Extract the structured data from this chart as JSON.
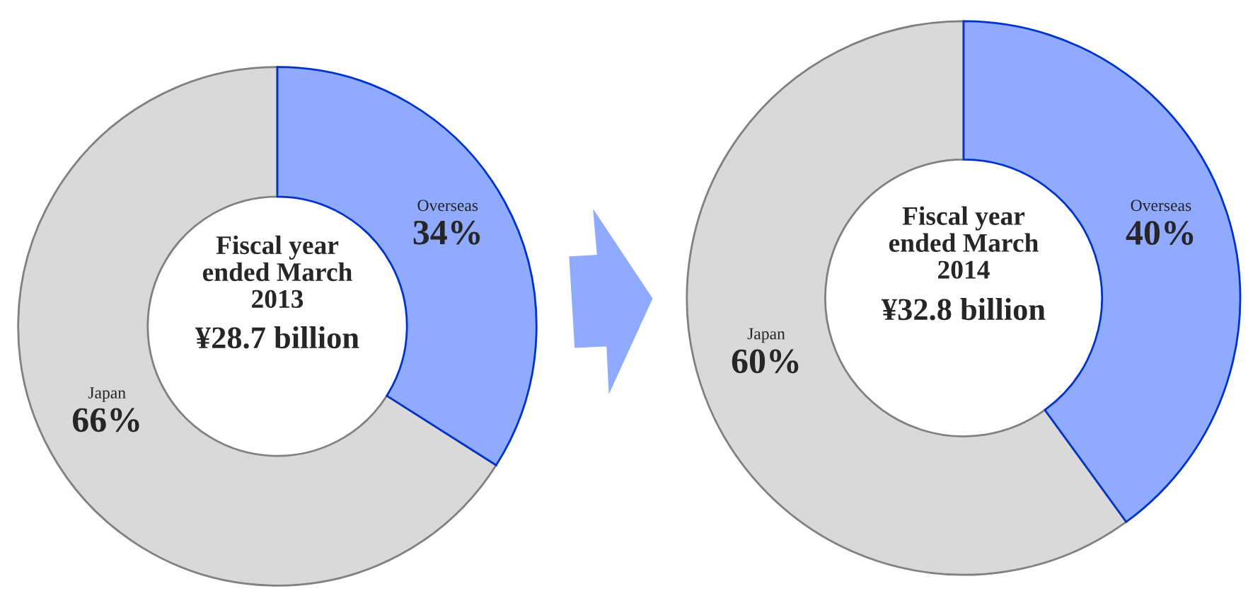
{
  "chart_data": [
    {
      "type": "donut",
      "title": "Fiscal year\nended March\n2013",
      "subtitle": "¥28.7 billion",
      "categories": [
        "Overseas",
        "Japan"
      ],
      "values": [
        34,
        66
      ],
      "colors": [
        "#8faaff",
        "#d9d9d9"
      ],
      "value_labels": [
        "34%",
        "66%"
      ]
    },
    {
      "type": "donut",
      "title": "Fiscal year\nended March\n2014",
      "subtitle": "¥32.8 billion",
      "categories": [
        "Overseas",
        "Japan"
      ],
      "values": [
        40,
        60
      ],
      "colors": [
        "#8faaff",
        "#d9d9d9"
      ],
      "value_labels": [
        "40%",
        "60%"
      ]
    }
  ]
}
